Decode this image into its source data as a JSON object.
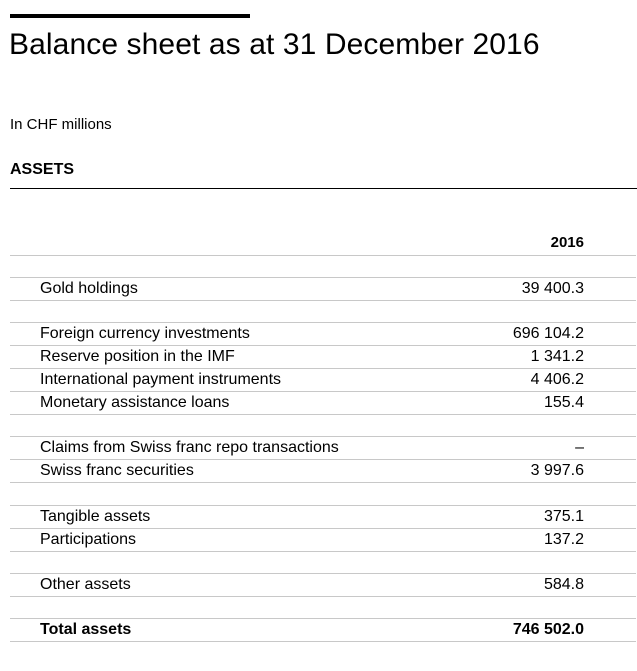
{
  "header": {
    "title": "Balance sheet as at 31 December 2016",
    "unit_note": "In CHF millions",
    "section": "ASSETS"
  },
  "table": {
    "column_header": "2016",
    "rows": [
      {
        "label": "Gold holdings",
        "value": "39 400.3"
      },
      {
        "label": "Foreign currency investments",
        "value": "696 104.2"
      },
      {
        "label": "Reserve position in the IMF",
        "value": "1 341.2"
      },
      {
        "label": "International payment instruments",
        "value": "4 406.2"
      },
      {
        "label": "Monetary assistance loans",
        "value": "155.4"
      },
      {
        "label": "Claims from Swiss franc repo transactions",
        "value": "–"
      },
      {
        "label": "Swiss franc securities",
        "value": "3 997.6"
      },
      {
        "label": "Tangible assets",
        "value": "375.1"
      },
      {
        "label": "Participations",
        "value": "137.2"
      },
      {
        "label": "Other assets",
        "value": "584.8"
      },
      {
        "label": "Total assets",
        "value": "746 502.0"
      }
    ]
  }
}
